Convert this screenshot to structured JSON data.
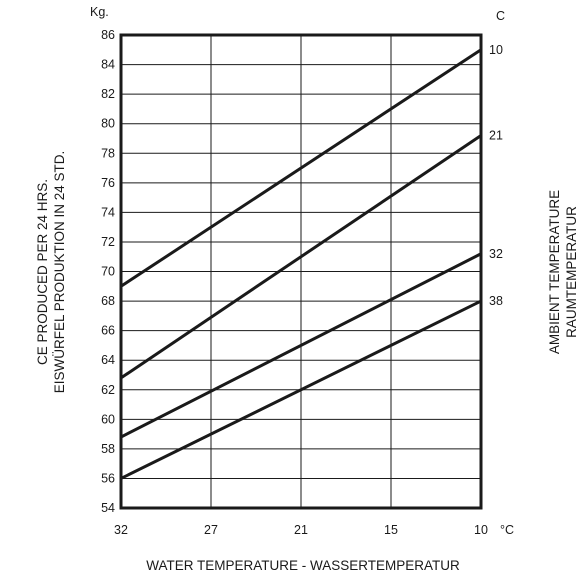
{
  "chart_data": {
    "type": "line",
    "title": "",
    "xlabel": "WATER TEMPERATURE - WASSERTEMPERATUR",
    "x_unit": "°C",
    "ylabel_lines": [
      "CE PRODUCED PER 24 HRS.",
      "EISWÜRFEL PRODUKTION IN 24 STD."
    ],
    "y_unit": "Kg.",
    "right_label_lines": [
      "AMBIENT TEMPERATURE",
      "RAUMTEMPERATUR"
    ],
    "right_unit": "C",
    "x_ticks": [
      "32",
      "27",
      "21",
      "15",
      "10"
    ],
    "x_values": [
      32,
      10
    ],
    "y_ticks": [
      86,
      84,
      82,
      80,
      78,
      76,
      74,
      72,
      70,
      68,
      66,
      64,
      62,
      60,
      58,
      56,
      54
    ],
    "ylim": [
      54,
      86
    ],
    "grid": true,
    "series": [
      {
        "name": "10",
        "values": [
          69,
          85
        ]
      },
      {
        "name": "21",
        "values": [
          62.8,
          79.2
        ]
      },
      {
        "name": "32",
        "values": [
          58.8,
          71.2
        ]
      },
      {
        "name": "38",
        "values": [
          56,
          68
        ]
      }
    ]
  }
}
